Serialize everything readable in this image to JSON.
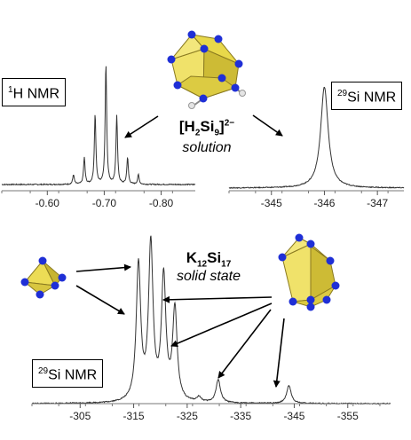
{
  "top_left_box": {
    "sup": "1",
    "rest": "H NMR"
  },
  "top_right_box": {
    "sup": "29",
    "rest": "Si NMR"
  },
  "bottom_box": {
    "sup": "29",
    "rest": "Si NMR"
  },
  "solution_formula": {
    "open": "[H",
    "sub1": "2",
    "mid": "Si",
    "sub2": "9",
    "close": "]",
    "charge": "2−"
  },
  "solution_state": "solution",
  "solid_formula": {
    "main": "K",
    "sub1": "12",
    "mid": "Si",
    "sub2": "17"
  },
  "solid_state": "solid state",
  "colors": {
    "cluster_face": "#e8d84a",
    "cluster_atom": "#1f2fd6",
    "hydrogen": "#dddddd",
    "trace": "#333333"
  },
  "chart_data": [
    {
      "type": "line",
      "title": "1H NMR",
      "xlim": [
        -0.52,
        -0.86
      ],
      "x_ticks": [
        "-0.60",
        "-0.70",
        "-0.80"
      ],
      "x_tick_values": [
        -0.6,
        -0.7,
        -0.8
      ],
      "peaks": [
        {
          "x": -0.646,
          "height": 0.08
        },
        {
          "x": -0.665,
          "height": 0.22
        },
        {
          "x": -0.684,
          "height": 0.58
        },
        {
          "x": -0.703,
          "height": 1.0
        },
        {
          "x": -0.722,
          "height": 0.57
        },
        {
          "x": -0.741,
          "height": 0.22
        },
        {
          "x": -0.76,
          "height": 0.08
        }
      ]
    },
    {
      "type": "line",
      "title": "29Si NMR",
      "xlim": [
        -344.2,
        -347.5
      ],
      "x_ticks": [
        "-345",
        "-346",
        "-347"
      ],
      "x_tick_values": [
        -345,
        -346,
        -347
      ],
      "peaks": [
        {
          "x": -346.0,
          "height": 1.0
        }
      ]
    },
    {
      "type": "line",
      "title": "29Si NMR",
      "xlim": [
        -296,
        -363
      ],
      "x_ticks": [
        "-305",
        "-315",
        "-325",
        "-335",
        "-345",
        "-355"
      ],
      "x_tick_values": [
        -305,
        -315,
        -325,
        -335,
        -345,
        -355
      ],
      "peaks": [
        {
          "x": -315.9,
          "height": 0.83
        },
        {
          "x": -318.2,
          "height": 0.95
        },
        {
          "x": -320.6,
          "height": 0.75
        },
        {
          "x": -322.7,
          "height": 0.56
        },
        {
          "x": -327.2,
          "height": 0.03
        },
        {
          "x": -330.8,
          "height": 0.14
        },
        {
          "x": -344.0,
          "height": 0.11
        }
      ]
    }
  ]
}
